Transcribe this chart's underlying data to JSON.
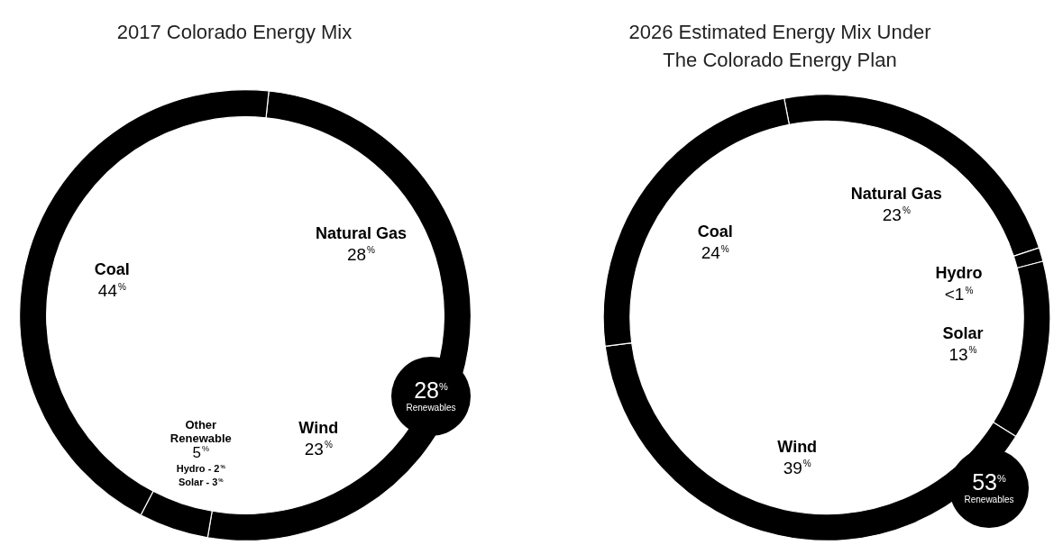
{
  "chart_data": [
    {
      "type": "donut",
      "title": "2017 Colorado Energy Mix",
      "categories": [
        "Natural Gas",
        "Wind",
        "Other Renewable",
        "Coal"
      ],
      "values": [
        28,
        23,
        5,
        44
      ],
      "value_labels": [
        "28$^{%}$",
        "23$^{%}$",
        "5$^{%}$",
        "44$^{%}$"
      ],
      "colors": [
        "#000000",
        "#000000",
        "#000000",
        "#000000"
      ],
      "annotations": [
        "Hydro - 2$^{%}$",
        "Solar - 3$^{%}$",
        "28$^{%}$ Renewables"
      ]
    },
    {
      "type": "donut",
      "title": "2026 Estimated Energy Mix Under The Colorado Energy Plan",
      "categories": [
        "Natural Gas",
        "Hydro",
        "Solar",
        "Wind",
        "Coal"
      ],
      "values": [
        23,
        1,
        13,
        39,
        24
      ],
      "value_labels": [
        "23$^{%}$",
        "<1$^{%}$",
        "13$^{%}$",
        "39$^{%}$",
        "24$^{%}$"
      ],
      "colors": [
        "#000000",
        "#000000",
        "#000000",
        "#000000",
        "#000000"
      ],
      "annotations": [
        "53$^{%}$ Renewables"
      ]
    }
  ]
}
